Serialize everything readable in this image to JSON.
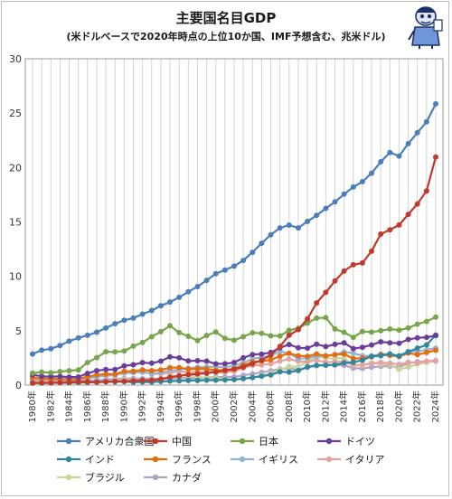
{
  "title": "主要国名目GDP",
  "subtitle": "(米ドルベースで2020年時点の上位10か国、IMF予想含む、兆米ドル)",
  "chart_data": {
    "type": "line",
    "x_tick_labels": [
      "1980年",
      "1982年",
      "1984年",
      "1986年",
      "1988年",
      "1990年",
      "1992年",
      "1994年",
      "1996年",
      "1998年",
      "2000年",
      "2002年",
      "2004年",
      "2006年",
      "2008年",
      "2010年",
      "2012年",
      "2014年",
      "2016年",
      "2018年",
      "2020年",
      "2022年",
      "2024年"
    ],
    "x": [
      1980,
      1981,
      1982,
      1983,
      1984,
      1985,
      1986,
      1987,
      1988,
      1989,
      1990,
      1991,
      1992,
      1993,
      1994,
      1995,
      1996,
      1997,
      1998,
      1999,
      2000,
      2001,
      2002,
      2003,
      2004,
      2005,
      2006,
      2007,
      2008,
      2009,
      2010,
      2011,
      2012,
      2013,
      2014,
      2015,
      2016,
      2017,
      2018,
      2019,
      2020,
      2021,
      2022,
      2023,
      2024
    ],
    "ylim": [
      0,
      30
    ],
    "y_ticks": [
      0,
      5,
      10,
      15,
      20,
      25,
      30
    ],
    "grid": "vertical",
    "legend_position": "bottom",
    "series": [
      {
        "name": "アメリカ合衆国",
        "color": "#4a7ebb",
        "values": [
          2.86,
          3.21,
          3.34,
          3.64,
          4.04,
          4.34,
          4.58,
          4.86,
          5.24,
          5.64,
          5.96,
          6.16,
          6.52,
          6.86,
          7.29,
          7.64,
          8.07,
          8.58,
          9.06,
          9.63,
          10.25,
          10.58,
          10.94,
          11.46,
          12.21,
          13.04,
          13.82,
          14.45,
          14.71,
          14.45,
          15.05,
          15.6,
          16.25,
          16.84,
          17.55,
          18.21,
          18.7,
          19.48,
          20.53,
          21.38,
          21.06,
          22.2,
          23.2,
          24.2,
          25.85
        ]
      },
      {
        "name": "中国",
        "color": "#c0392b",
        "values": [
          0.19,
          0.2,
          0.21,
          0.23,
          0.26,
          0.31,
          0.3,
          0.27,
          0.31,
          0.35,
          0.36,
          0.38,
          0.43,
          0.44,
          0.56,
          0.73,
          0.86,
          0.96,
          1.03,
          1.09,
          1.21,
          1.34,
          1.47,
          1.66,
          1.96,
          2.29,
          2.75,
          3.55,
          4.59,
          5.1,
          6.09,
          7.55,
          8.53,
          9.57,
          10.48,
          11.06,
          11.23,
          12.31,
          13.89,
          14.28,
          14.72,
          15.7,
          16.65,
          17.85,
          20.97
        ]
      },
      {
        "name": "日本",
        "color": "#76a649",
        "values": [
          1.1,
          1.2,
          1.13,
          1.24,
          1.32,
          1.4,
          2.08,
          2.53,
          3.07,
          3.05,
          3.13,
          3.58,
          3.91,
          4.45,
          4.91,
          5.45,
          4.83,
          4.49,
          4.1,
          4.56,
          4.89,
          4.3,
          4.12,
          4.45,
          4.81,
          4.76,
          4.53,
          4.52,
          5.04,
          5.23,
          5.7,
          6.16,
          6.2,
          5.16,
          4.85,
          4.39,
          4.92,
          4.87,
          5.0,
          5.15,
          5.05,
          5.25,
          5.6,
          5.85,
          6.25
        ]
      },
      {
        "name": "ドイツ",
        "color": "#6a3d9a",
        "values": [
          0.95,
          0.81,
          0.79,
          0.79,
          0.74,
          0.75,
          1.07,
          1.33,
          1.43,
          1.43,
          1.76,
          1.87,
          2.07,
          2.01,
          2.2,
          2.59,
          2.5,
          2.22,
          2.24,
          2.2,
          1.95,
          1.96,
          2.08,
          2.5,
          2.81,
          2.85,
          3.0,
          3.43,
          3.73,
          3.42,
          3.4,
          3.76,
          3.54,
          3.75,
          3.89,
          3.36,
          3.47,
          3.69,
          3.98,
          3.89,
          3.85,
          4.2,
          4.35,
          4.4,
          4.55
        ]
      },
      {
        "name": "インド",
        "color": "#31869b",
        "values": [
          0.19,
          0.2,
          0.2,
          0.22,
          0.22,
          0.24,
          0.25,
          0.28,
          0.3,
          0.3,
          0.32,
          0.27,
          0.29,
          0.28,
          0.33,
          0.37,
          0.39,
          0.42,
          0.42,
          0.46,
          0.46,
          0.48,
          0.51,
          0.6,
          0.7,
          0.82,
          0.94,
          1.22,
          1.2,
          1.34,
          1.68,
          1.82,
          1.83,
          1.86,
          2.04,
          2.1,
          2.29,
          2.65,
          2.7,
          2.87,
          2.66,
          3.05,
          3.4,
          3.7,
          4.6
        ]
      },
      {
        "name": "フランス",
        "color": "#e46c0a",
        "values": [
          0.7,
          0.61,
          0.58,
          0.56,
          0.53,
          0.55,
          0.77,
          0.93,
          1.01,
          1.0,
          1.27,
          1.27,
          1.4,
          1.32,
          1.39,
          1.6,
          1.61,
          1.46,
          1.5,
          1.49,
          1.36,
          1.38,
          1.5,
          1.84,
          2.12,
          2.2,
          2.32,
          2.66,
          2.92,
          2.69,
          2.65,
          2.86,
          2.68,
          2.81,
          2.86,
          2.44,
          2.47,
          2.6,
          2.79,
          2.73,
          2.63,
          2.95,
          2.8,
          3.0,
          3.2
        ]
      },
      {
        "name": "イギリス",
        "color": "#95b3d7",
        "values": [
          0.6,
          0.54,
          0.51,
          0.48,
          0.46,
          0.49,
          0.6,
          0.74,
          0.91,
          0.93,
          1.09,
          1.14,
          1.18,
          1.06,
          1.14,
          1.34,
          1.42,
          1.56,
          1.65,
          1.68,
          1.66,
          1.64,
          1.78,
          2.05,
          2.42,
          2.54,
          2.71,
          3.09,
          2.93,
          2.41,
          2.48,
          2.66,
          2.7,
          2.78,
          3.06,
          2.93,
          2.69,
          2.68,
          2.86,
          2.83,
          2.71,
          3.1,
          3.1,
          3.25,
          3.4
        ]
      },
      {
        "name": "イタリア",
        "color": "#e6a2a0",
        "values": [
          0.48,
          0.43,
          0.43,
          0.44,
          0.43,
          0.44,
          0.62,
          0.77,
          0.85,
          0.91,
          1.14,
          1.19,
          1.26,
          1.02,
          1.05,
          1.13,
          1.27,
          1.2,
          1.23,
          1.21,
          1.15,
          1.17,
          1.27,
          1.57,
          1.8,
          1.85,
          1.95,
          2.21,
          2.4,
          2.19,
          2.13,
          2.29,
          2.09,
          2.14,
          2.16,
          1.84,
          1.88,
          1.96,
          2.09,
          2.01,
          1.9,
          2.1,
          2.05,
          2.2,
          2.25
        ]
      },
      {
        "name": "ブラジル",
        "color": "#c3d69b",
        "values": [
          0.24,
          0.26,
          0.27,
          0.19,
          0.19,
          0.22,
          0.26,
          0.29,
          0.31,
          0.42,
          0.46,
          0.41,
          0.39,
          0.43,
          0.56,
          0.77,
          0.84,
          0.87,
          0.84,
          0.59,
          0.65,
          0.56,
          0.51,
          0.56,
          0.67,
          0.89,
          1.11,
          1.4,
          1.7,
          1.67,
          2.21,
          2.62,
          2.47,
          2.47,
          2.46,
          1.8,
          1.8,
          2.06,
          1.92,
          1.87,
          1.45,
          1.65,
          1.92,
          2.08,
          2.25
        ]
      },
      {
        "name": "カナダ",
        "color": "#b3a2c7",
        "values": [
          0.27,
          0.3,
          0.31,
          0.34,
          0.36,
          0.37,
          0.38,
          0.43,
          0.51,
          0.57,
          0.59,
          0.61,
          0.59,
          0.58,
          0.58,
          0.6,
          0.63,
          0.65,
          0.63,
          0.68,
          0.74,
          0.74,
          0.76,
          0.9,
          1.03,
          1.17,
          1.32,
          1.47,
          1.55,
          1.37,
          1.62,
          1.79,
          1.83,
          1.85,
          1.81,
          1.56,
          1.53,
          1.65,
          1.72,
          1.74,
          1.65,
          2.0,
          2.15,
          2.15,
          2.2
        ]
      }
    ]
  }
}
